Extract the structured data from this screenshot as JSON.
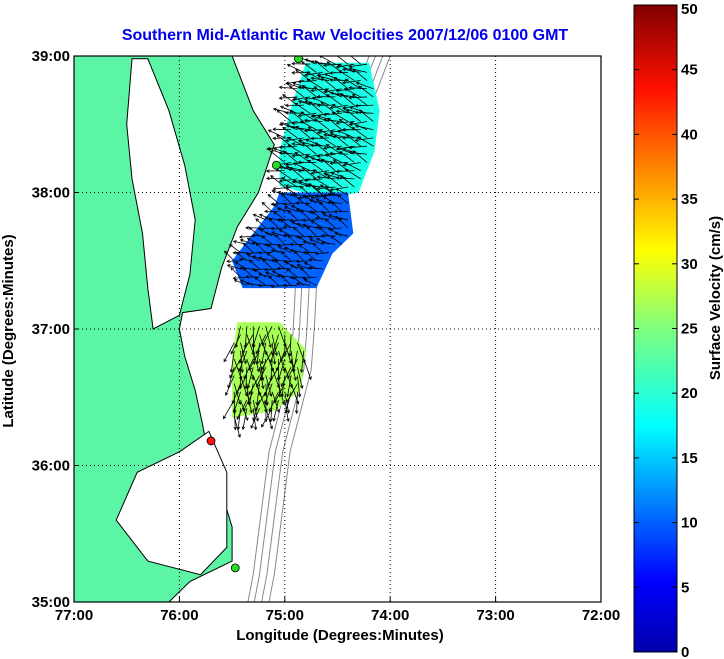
{
  "chart_data": {
    "type": "vector-field-map",
    "title": "Southern Mid-Atlantic Raw Velocities 2007/12/06 0100 GMT",
    "xlabel": "Longitude (Degrees:Minutes)",
    "ylabel": "Latitude (Degrees:Minutes)",
    "xlim": [
      -77,
      -72
    ],
    "ylim": [
      35,
      39
    ],
    "x_ticks": [
      -77,
      -76,
      -75,
      -74,
      -73,
      -72
    ],
    "x_tick_labels": [
      "77:00",
      "76:00",
      "75:00",
      "74:00",
      "73:00",
      "72:00"
    ],
    "y_ticks": [
      35,
      36,
      37,
      38,
      39
    ],
    "y_tick_labels": [
      "35:00",
      "36:00",
      "37:00",
      "38:00",
      "39:00"
    ],
    "grid": true,
    "colorbar": {
      "label": "Surface Velocity (cm/s)",
      "range": [
        0,
        50
      ],
      "ticks": [
        0,
        5,
        10,
        15,
        20,
        25,
        30,
        35,
        40,
        45,
        50
      ],
      "tick_labels": [
        "0",
        "5",
        "10",
        "15",
        "20",
        "25",
        "30",
        "35",
        "40",
        "45",
        "50"
      ],
      "colormap": "jet"
    },
    "colors": {
      "land": "#5cf5a6",
      "title": "#0000ee",
      "coastline": "#000000",
      "bathymetry": "#888888"
    },
    "sites": [
      {
        "lon": -74.87,
        "lat": 38.98,
        "status": "green"
      },
      {
        "lon": -75.08,
        "lat": 38.2,
        "status": "green"
      },
      {
        "lon": -75.7,
        "lat": 36.18,
        "status": "red"
      },
      {
        "lon": -75.47,
        "lat": 35.25,
        "status": "green"
      }
    ],
    "velocity_regions": [
      {
        "name": "north",
        "polygon": [
          [
            -74.8,
            38.95
          ],
          [
            -74.2,
            38.95
          ],
          [
            -74.1,
            38.6
          ],
          [
            -74.15,
            38.3
          ],
          [
            -74.3,
            38.0
          ],
          [
            -74.6,
            37.95
          ],
          [
            -75.05,
            38.05
          ],
          [
            -75.05,
            38.3
          ],
          [
            -74.95,
            38.6
          ]
        ],
        "speed": 20,
        "dir_deg": 195
      },
      {
        "name": "middle",
        "polygon": [
          [
            -75.05,
            38.0
          ],
          [
            -74.4,
            38.0
          ],
          [
            -74.35,
            37.7
          ],
          [
            -74.55,
            37.55
          ],
          [
            -74.7,
            37.3
          ],
          [
            -75.4,
            37.3
          ],
          [
            -75.5,
            37.5
          ],
          [
            -75.3,
            37.7
          ],
          [
            -75.1,
            37.9
          ]
        ],
        "speed": 11,
        "dir_deg": 200
      },
      {
        "name": "south",
        "polygon": [
          [
            -75.45,
            37.05
          ],
          [
            -75.05,
            37.05
          ],
          [
            -74.8,
            36.85
          ],
          [
            -74.85,
            36.55
          ],
          [
            -75.1,
            36.4
          ],
          [
            -75.5,
            36.35
          ],
          [
            -75.5,
            36.8
          ]
        ],
        "speed": 27,
        "dir_deg": 95
      }
    ]
  }
}
